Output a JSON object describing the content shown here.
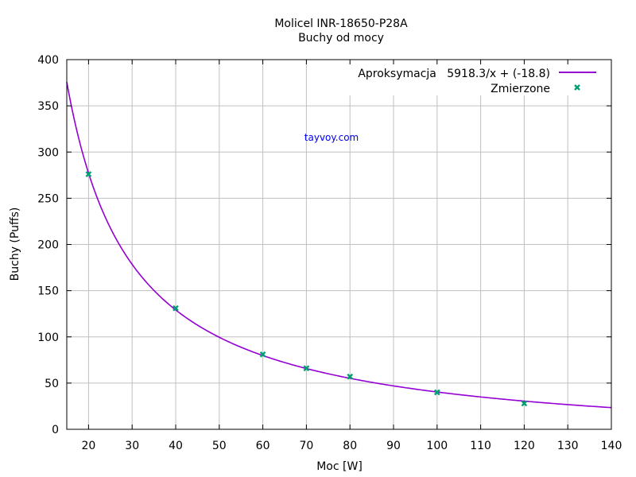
{
  "chart_data": {
    "type": "scatter",
    "title": "Molicel INR-18650-P28A",
    "subtitle": "Buchy od mocy",
    "xlabel": "Moc [W]",
    "ylabel": "Buchy (Puffs)",
    "xlim": [
      15,
      140
    ],
    "ylim": [
      0,
      400
    ],
    "xticks": [
      20,
      30,
      40,
      50,
      60,
      70,
      80,
      90,
      100,
      110,
      120,
      130,
      140
    ],
    "yticks": [
      0,
      50,
      100,
      150,
      200,
      250,
      300,
      350,
      400
    ],
    "grid": true,
    "legend_position": "top-right",
    "annotation": "tayvoy.com",
    "series": [
      {
        "name": "Aproksymacja   5918.3/x + (-18.8)",
        "kind": "line",
        "function": "5918.3/x + (-18.8)",
        "a": 5918.3,
        "b": -18.8,
        "color": "#9400d3"
      },
      {
        "name": "Zmierzone",
        "kind": "points",
        "color": "#009e73",
        "x": [
          20,
          40,
          60,
          70,
          80,
          100,
          120
        ],
        "y": [
          276,
          131,
          81,
          66,
          57,
          40,
          28
        ]
      }
    ]
  }
}
